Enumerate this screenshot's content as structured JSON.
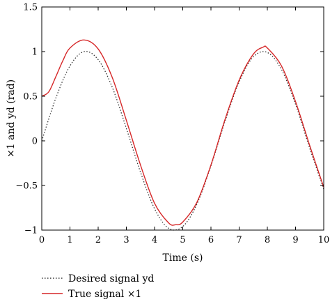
{
  "chart_data": {
    "type": "line",
    "title": "",
    "xlabel": "Time (s)",
    "ylabel": "×1 and yd (rad)",
    "xlim": [
      0,
      10
    ],
    "ylim": [
      -1,
      1.5
    ],
    "xticks": [
      "0",
      "1",
      "2",
      "3",
      "4",
      "5",
      "6",
      "7",
      "8",
      "9",
      "10"
    ],
    "yticks": [
      "−1",
      "−0.5",
      "0",
      "0.5",
      "1",
      "1.5"
    ],
    "grid": false,
    "legend_position": "bottom-left, below plot",
    "series": [
      {
        "name": "Desired signal yd",
        "color": "#333333",
        "style": "dotted",
        "x": [
          0,
          0.5,
          1,
          1.5,
          2,
          2.5,
          3,
          3.5,
          4,
          4.5,
          5,
          5.5,
          6,
          6.5,
          7,
          7.5,
          8,
          8.5,
          9,
          9.5,
          10
        ],
        "y": [
          0,
          0.48,
          0.84,
          1.0,
          0.91,
          0.6,
          0.14,
          -0.35,
          -0.76,
          -0.98,
          -0.96,
          -0.71,
          -0.28,
          0.22,
          0.66,
          0.94,
          0.99,
          0.8,
          0.41,
          -0.08,
          -0.54
        ]
      },
      {
        "name": "True signal ×1",
        "color": "#d62728",
        "style": "solid",
        "x": [
          0,
          0.25,
          0.5,
          0.75,
          1,
          1.5,
          2,
          2.5,
          3,
          3.5,
          4,
          4.5,
          4.75,
          5,
          5.5,
          6,
          6.5,
          7,
          7.5,
          7.85,
          8,
          8.5,
          9,
          9.5,
          10
        ],
        "y": [
          0.5,
          0.55,
          0.72,
          0.9,
          1.04,
          1.13,
          1.03,
          0.71,
          0.23,
          -0.27,
          -0.7,
          -0.92,
          -0.94,
          -0.91,
          -0.69,
          -0.27,
          0.24,
          0.68,
          0.97,
          1.05,
          1.04,
          0.84,
          0.44,
          -0.05,
          -0.52
        ]
      }
    ]
  }
}
